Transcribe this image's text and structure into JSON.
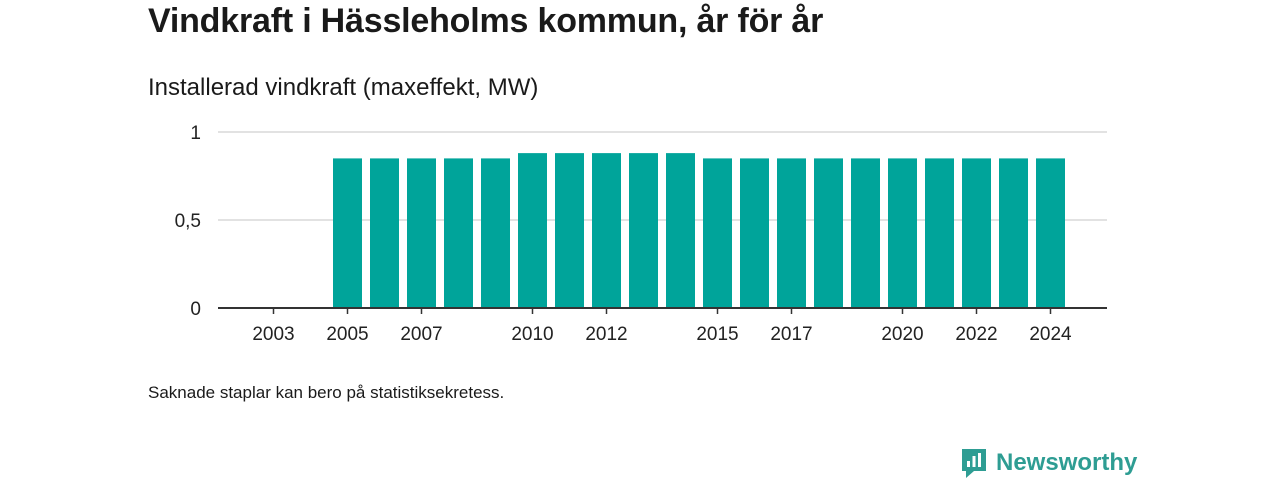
{
  "title": "Vindkraft i Hässleholms kommun, år för år",
  "subtitle": "Installerad vindkraft (maxeffekt, MW)",
  "note": "Saknade staplar kan bero på statistiksekretess.",
  "brand": {
    "name": "Newsworthy",
    "icon": "newsworthy-logo-icon"
  },
  "colors": {
    "bar": "#00a49a",
    "brand": "#2e9d93",
    "grid": "#d9d9d9",
    "axis": "#333333"
  },
  "chart_data": {
    "type": "bar",
    "categories": [
      "2003",
      "2004",
      "2005",
      "2006",
      "2007",
      "2008",
      "2009",
      "2010",
      "2011",
      "2012",
      "2013",
      "2014",
      "2015",
      "2016",
      "2017",
      "2018",
      "2019",
      "2020",
      "2021",
      "2022",
      "2023",
      "2024"
    ],
    "values": [
      null,
      null,
      0.85,
      0.85,
      0.85,
      0.85,
      0.85,
      0.88,
      0.88,
      0.88,
      0.88,
      0.88,
      0.85,
      0.85,
      0.85,
      0.85,
      0.85,
      0.85,
      0.85,
      0.85,
      0.85,
      0.85
    ],
    "x_tick_labels": [
      "2003",
      "2005",
      "2007",
      "2010",
      "2012",
      "2015",
      "2017",
      "2020",
      "2022",
      "2024"
    ],
    "y_ticks": [
      0,
      0.5,
      1
    ],
    "y_tick_labels": [
      "0",
      "0,5",
      "1"
    ],
    "ylim": [
      0,
      1
    ],
    "grid": true,
    "legend": "none"
  }
}
